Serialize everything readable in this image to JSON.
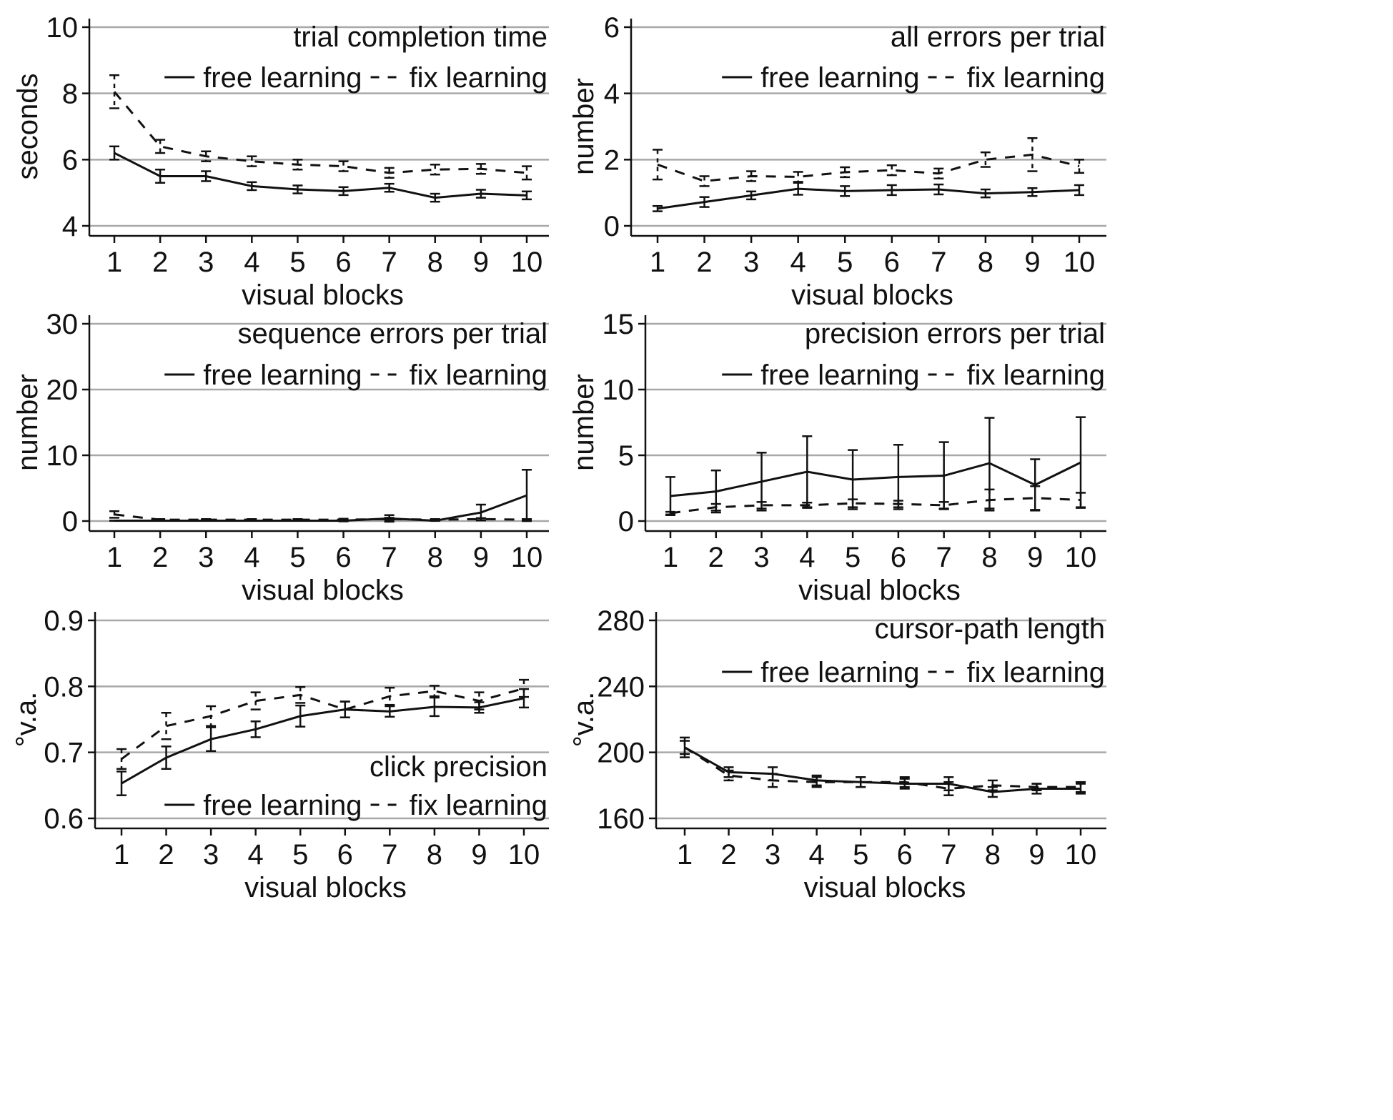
{
  "chart_data": [
    {
      "type": "line",
      "id": "trial-completion-time",
      "title": "trial completion time",
      "xlabel": "visual blocks",
      "ylabel": "seconds",
      "ylim": [
        4,
        10
      ],
      "yticks": [
        4,
        6,
        8,
        10
      ],
      "categories": [
        "1",
        "2",
        "3",
        "4",
        "5",
        "6",
        "7",
        "8",
        "9",
        "10"
      ],
      "legend_position": "top-right",
      "series": [
        {
          "name": "free learning",
          "style": "solid",
          "values": [
            6.2,
            5.5,
            5.5,
            5.2,
            5.1,
            5.05,
            5.15,
            4.85,
            4.97,
            4.92
          ],
          "errors": [
            0.2,
            0.2,
            0.15,
            0.12,
            0.12,
            0.12,
            0.12,
            0.12,
            0.12,
            0.12
          ]
        },
        {
          "name": "fix learning",
          "style": "dashed",
          "values": [
            8.05,
            6.4,
            6.1,
            5.95,
            5.85,
            5.8,
            5.6,
            5.7,
            5.72,
            5.6
          ],
          "errors": [
            0.5,
            0.2,
            0.15,
            0.15,
            0.15,
            0.15,
            0.15,
            0.15,
            0.15,
            0.2
          ]
        }
      ]
    },
    {
      "type": "line",
      "id": "all-errors",
      "title": "all errors per trial",
      "xlabel": "visual blocks",
      "ylabel": "number",
      "ylim": [
        0,
        6
      ],
      "yticks": [
        0,
        2,
        4,
        6
      ],
      "categories": [
        "1",
        "2",
        "3",
        "4",
        "5",
        "6",
        "7",
        "8",
        "9",
        "10"
      ],
      "legend_position": "top-right",
      "series": [
        {
          "name": "free learning",
          "style": "solid",
          "values": [
            0.52,
            0.72,
            0.92,
            1.12,
            1.05,
            1.08,
            1.1,
            0.98,
            1.02,
            1.08
          ],
          "errors": [
            0.08,
            0.15,
            0.12,
            0.18,
            0.15,
            0.15,
            0.15,
            0.12,
            0.12,
            0.15
          ]
        },
        {
          "name": "fix learning",
          "style": "dashed",
          "values": [
            1.85,
            1.35,
            1.5,
            1.48,
            1.62,
            1.68,
            1.58,
            2.0,
            2.15,
            1.8
          ],
          "errors": [
            0.45,
            0.15,
            0.15,
            0.15,
            0.15,
            0.15,
            0.15,
            0.22,
            0.5,
            0.2
          ]
        }
      ]
    },
    {
      "type": "line",
      "id": "sequence-errors",
      "title": "sequence errors per trial",
      "xlabel": "visual blocks",
      "ylabel": "number",
      "ylim": [
        0,
        30
      ],
      "yticks": [
        0,
        10,
        20,
        30
      ],
      "categories": [
        "1",
        "2",
        "3",
        "4",
        "5",
        "6",
        "7",
        "8",
        "9",
        "10"
      ],
      "legend_position": "top-right",
      "series": [
        {
          "name": "free learning",
          "style": "solid",
          "values": [
            0.05,
            0.05,
            0.05,
            0.05,
            0.05,
            0.05,
            0.4,
            0.05,
            1.3,
            3.9
          ],
          "errors": [
            0.0,
            0.0,
            0.0,
            0.0,
            0.0,
            0.1,
            0.5,
            0.0,
            1.2,
            3.9
          ]
        },
        {
          "name": "fix learning",
          "style": "dashed",
          "values": [
            1.0,
            0.2,
            0.2,
            0.2,
            0.2,
            0.2,
            0.3,
            0.2,
            0.3,
            0.2
          ],
          "errors": [
            0.5,
            0.1,
            0.1,
            0.1,
            0.1,
            0.15,
            0.2,
            0.1,
            0.15,
            0.1
          ]
        }
      ]
    },
    {
      "type": "line",
      "id": "precision-errors",
      "title": "precision errors per trial",
      "xlabel": "visual blocks",
      "ylabel": "number",
      "ylim": [
        0,
        15
      ],
      "yticks": [
        0,
        5,
        10,
        15
      ],
      "categories": [
        "1",
        "2",
        "3",
        "4",
        "5",
        "6",
        "7",
        "8",
        "9",
        "10"
      ],
      "legend_position": "top-right",
      "series": [
        {
          "name": "free learning",
          "style": "solid",
          "values": [
            1.9,
            2.25,
            3.0,
            3.75,
            3.15,
            3.35,
            3.45,
            4.4,
            2.75,
            4.45
          ],
          "errors": [
            1.45,
            1.6,
            2.2,
            2.7,
            2.25,
            2.45,
            2.55,
            3.45,
            1.95,
            3.45
          ]
        },
        {
          "name": "fix learning",
          "style": "dashed",
          "values": [
            0.6,
            1.05,
            1.2,
            1.2,
            1.35,
            1.3,
            1.2,
            1.6,
            1.75,
            1.6
          ],
          "errors": [
            0.1,
            0.25,
            0.25,
            0.2,
            0.3,
            0.25,
            0.25,
            0.8,
            0.9,
            0.55
          ]
        }
      ]
    },
    {
      "type": "line",
      "id": "click-precision",
      "title": "click precision",
      "xlabel": "visual blocks",
      "ylabel": "°v.a.",
      "ylim": [
        0.6,
        0.9
      ],
      "yticks": [
        0.6,
        0.7,
        0.8,
        0.9
      ],
      "ytick_labels": [
        "0.6",
        "0.7",
        "0.8",
        "0.9"
      ],
      "categories": [
        "1",
        "2",
        "3",
        "4",
        "5",
        "6",
        "7",
        "8",
        "9",
        "10"
      ],
      "legend_position": "bottom-right",
      "series": [
        {
          "name": "free learning",
          "style": "solid",
          "values": [
            0.653,
            0.692,
            0.72,
            0.735,
            0.755,
            0.765,
            0.762,
            0.769,
            0.768,
            0.782
          ],
          "errors": [
            0.018,
            0.017,
            0.018,
            0.012,
            0.016,
            0.012,
            0.008,
            0.014,
            0.008,
            0.014
          ]
        },
        {
          "name": "fix learning",
          "style": "dashed",
          "values": [
            0.69,
            0.74,
            0.755,
            0.778,
            0.787,
            0.765,
            0.785,
            0.793,
            0.778,
            0.797
          ],
          "errors": [
            0.015,
            0.02,
            0.015,
            0.013,
            0.012,
            0.012,
            0.013,
            0.008,
            0.013,
            0.013
          ]
        }
      ]
    },
    {
      "type": "line",
      "id": "cursor-path-length",
      "title": "cursor-path length",
      "xlabel": "visual blocks",
      "ylabel": "°v.a.",
      "ylim": [
        160,
        280
      ],
      "yticks": [
        160,
        200,
        240,
        280
      ],
      "categories": [
        "1",
        "2",
        "3",
        "4",
        "5",
        "6",
        "7",
        "8",
        "9",
        "10"
      ],
      "legend_position": "top-right",
      "series": [
        {
          "name": "free learning",
          "style": "solid",
          "values": [
            203,
            188,
            187,
            183,
            182,
            181,
            181,
            176,
            178,
            178
          ],
          "errors": [
            6,
            3,
            4,
            3,
            3,
            3,
            4,
            3,
            3,
            3
          ]
        },
        {
          "name": "fix learning",
          "style": "dashed",
          "values": [
            203,
            186,
            183,
            182,
            182,
            182,
            178,
            180,
            179,
            179
          ],
          "errors": [
            4,
            3,
            4,
            3,
            3,
            3,
            4,
            3,
            2,
            3
          ]
        }
      ]
    }
  ]
}
